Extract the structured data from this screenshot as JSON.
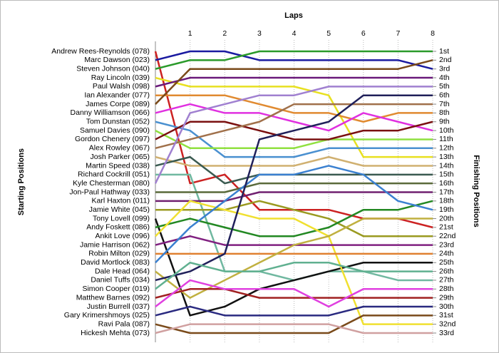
{
  "chart_data": {
    "type": "line",
    "title": "Laps",
    "y_label": "Starting Positions",
    "y2_label": "Finishing Positions",
    "x": [
      0,
      1,
      2,
      3,
      4,
      5,
      6,
      7,
      8
    ],
    "xlim": [
      0,
      8
    ],
    "xticks": [
      1,
      2,
      3,
      4,
      5,
      6,
      7,
      8
    ],
    "ylim": [
      1,
      33
    ],
    "inverted": true,
    "grid": true,
    "y2ticks": [
      {
        "value": 1,
        "label": "1st"
      },
      {
        "value": 2,
        "label": "2nd"
      },
      {
        "value": 3,
        "label": "3rd"
      },
      {
        "value": 4,
        "label": "4th"
      },
      {
        "value": 5,
        "label": "5th"
      },
      {
        "value": 6,
        "label": "6th"
      },
      {
        "value": 7,
        "label": "7th"
      },
      {
        "value": 8,
        "label": "8th"
      },
      {
        "value": 9,
        "label": "9th"
      },
      {
        "value": 10,
        "label": "10th"
      },
      {
        "value": 11,
        "label": "11th"
      },
      {
        "value": 12,
        "label": "12th"
      },
      {
        "value": 13,
        "label": "13th"
      },
      {
        "value": 14,
        "label": "14th"
      },
      {
        "value": 15,
        "label": "15th"
      },
      {
        "value": 16,
        "label": "16th"
      },
      {
        "value": 17,
        "label": "17th"
      },
      {
        "value": 18,
        "label": "18th"
      },
      {
        "value": 19,
        "label": "19th"
      },
      {
        "value": 20,
        "label": "20th"
      },
      {
        "value": 21,
        "label": "21st"
      },
      {
        "value": 22,
        "label": "22nd"
      },
      {
        "value": 23,
        "label": "23rd"
      },
      {
        "value": 24,
        "label": "24th"
      },
      {
        "value": 25,
        "label": "25th"
      },
      {
        "value": 26,
        "label": "26th"
      },
      {
        "value": 27,
        "label": "27th"
      },
      {
        "value": 28,
        "label": "28th"
      },
      {
        "value": 29,
        "label": "29th"
      },
      {
        "value": 30,
        "label": "30th"
      },
      {
        "value": 31,
        "label": "31st"
      },
      {
        "value": 32,
        "label": "32nd"
      },
      {
        "value": 33,
        "label": "33rd"
      }
    ],
    "series": [
      {
        "name": "Andrew Rees-Reynolds (078)",
        "color": "#cc2222",
        "values": [
          1,
          16,
          15,
          19,
          19,
          19,
          20,
          20,
          21
        ]
      },
      {
        "name": "Marc Dawson (023)",
        "color": "#1a1aa0",
        "values": [
          2,
          1,
          1,
          2,
          2,
          2,
          2,
          2,
          3
        ]
      },
      {
        "name": "Steven Johnson (040)",
        "color": "#2a9a2a",
        "values": [
          3,
          2,
          2,
          1,
          1,
          1,
          1,
          1,
          1
        ]
      },
      {
        "name": "Ray Lincoln (039)",
        "color": "#e8e020",
        "values": [
          4,
          5,
          5,
          5,
          5,
          6,
          13,
          13,
          13
        ]
      },
      {
        "name": "Paul Walsh (098)",
        "color": "#6a1a7a",
        "values": [
          5,
          4,
          4,
          4,
          4,
          4,
          4,
          4,
          4
        ]
      },
      {
        "name": "Ian Alexander (077)",
        "color": "#e08a30",
        "values": [
          6,
          6,
          6,
          7,
          8,
          8,
          9,
          8,
          8
        ]
      },
      {
        "name": "James Corpe (089)",
        "color": "#7a4a1a",
        "values": [
          7,
          3,
          3,
          3,
          3,
          3,
          3,
          3,
          2
        ]
      },
      {
        "name": "Danny Williamson (066)",
        "color": "#e030e0",
        "values": [
          8,
          7,
          8,
          8,
          9,
          10,
          8,
          9,
          10
        ]
      },
      {
        "name": "Tom Dunstan (052)",
        "color": "#4a90d0",
        "values": [
          9,
          10,
          13,
          13,
          13,
          12,
          12,
          12,
          12
        ]
      },
      {
        "name": "Samuel Davies (090)",
        "color": "#90e040",
        "values": [
          10,
          12,
          12,
          12,
          12,
          11,
          11,
          11,
          11
        ]
      },
      {
        "name": "Gordon Chenery (097)",
        "color": "#7a1010",
        "values": [
          11,
          9,
          9,
          10,
          11,
          11,
          10,
          10,
          9
        ]
      },
      {
        "name": "Alex Rowley (067)",
        "color": "#a0704a",
        "values": [
          12,
          11,
          10,
          9,
          7,
          7,
          7,
          7,
          7
        ]
      },
      {
        "name": "Josh Parker (065)",
        "color": "#d0b070",
        "values": [
          13,
          14,
          14,
          14,
          14,
          13,
          14,
          14,
          14
        ]
      },
      {
        "name": "Martin Speed (038)",
        "color": "#3a5a50",
        "values": [
          14,
          13,
          16,
          15,
          15,
          15,
          15,
          15,
          15
        ]
      },
      {
        "name": "Richard Cockrill (051)",
        "color": "#70b8a0",
        "values": [
          15,
          15,
          26,
          26,
          27,
          26,
          26,
          27,
          27
        ]
      },
      {
        "name": "Kyle Chesterman (080)",
        "color": "#a080d0",
        "values": [
          16,
          8,
          7,
          6,
          6,
          5,
          5,
          5,
          5
        ]
      },
      {
        "name": "Jon-Paul Hathway (033)",
        "color": "#5a6a3a",
        "values": [
          17,
          17,
          17,
          16,
          16,
          16,
          16,
          16,
          16
        ]
      },
      {
        "name": "Karl Haxton (011)",
        "color": "#702070",
        "values": [
          18,
          18,
          18,
          17,
          17,
          17,
          17,
          17,
          17
        ]
      },
      {
        "name": "Jamie White (045)",
        "color": "#9a9a20",
        "values": [
          19,
          19,
          19,
          18,
          19,
          20,
          22,
          22,
          22
        ]
      },
      {
        "name": "Tony Lovell (099)",
        "color": "#111111",
        "values": [
          20,
          31,
          30,
          28,
          27,
          26,
          25,
          25,
          25
        ]
      },
      {
        "name": "Andy Foskett (086)",
        "color": "#228822",
        "values": [
          21,
          20,
          21,
          22,
          22,
          21,
          19,
          19,
          18
        ]
      },
      {
        "name": "Ankit Love (096)",
        "color": "#f0e030",
        "values": [
          22,
          18,
          19,
          20,
          20,
          22,
          32,
          32,
          32
        ]
      },
      {
        "name": "Jamie Harrison (062)",
        "color": "#802080",
        "values": [
          23,
          22,
          23,
          23,
          23,
          23,
          23,
          23,
          23
        ]
      },
      {
        "name": "Robin Milton (029)",
        "color": "#e08030",
        "values": [
          24,
          24,
          24,
          24,
          24,
          24,
          24,
          24,
          24
        ]
      },
      {
        "name": "David Mortlock (083)",
        "color": "#3a80d0",
        "values": [
          25,
          21,
          18,
          15,
          15,
          14,
          15,
          18,
          19
        ]
      },
      {
        "name": "Dale Head (064)",
        "color": "#c0b040",
        "values": [
          26,
          29,
          27,
          25,
          23,
          22,
          20,
          20,
          20
        ]
      },
      {
        "name": "Daniel Tuffs (034)",
        "color": "#20205a",
        "values": [
          27,
          26,
          24,
          11,
          10,
          9,
          6,
          6,
          6
        ]
      },
      {
        "name": "Simon Cooper (019)",
        "color": "#60b090",
        "values": [
          28,
          25,
          26,
          26,
          25,
          25,
          26,
          26,
          26
        ]
      },
      {
        "name": "Matthew Barnes (092)",
        "color": "#a02020",
        "values": [
          29,
          28,
          28,
          29,
          29,
          29,
          29,
          29,
          29
        ]
      },
      {
        "name": "Justin Burrell (037)",
        "color": "#e040e0",
        "values": [
          30,
          27,
          28,
          28,
          28,
          30,
          28,
          28,
          28
        ]
      },
      {
        "name": "Gary Krimershmoys (025)",
        "color": "#2a2a80",
        "values": [
          31,
          30,
          31,
          31,
          31,
          31,
          30,
          30,
          30
        ]
      },
      {
        "name": "Ravi Pala (087)",
        "color": "#7a4a1a",
        "values": [
          32,
          33,
          33,
          33,
          33,
          33,
          31,
          31,
          31
        ]
      },
      {
        "name": "Hickesh Mehta (073)",
        "color": "#d0a0a0",
        "values": [
          33,
          32,
          32,
          32,
          32,
          32,
          33,
          33,
          33
        ]
      }
    ]
  }
}
